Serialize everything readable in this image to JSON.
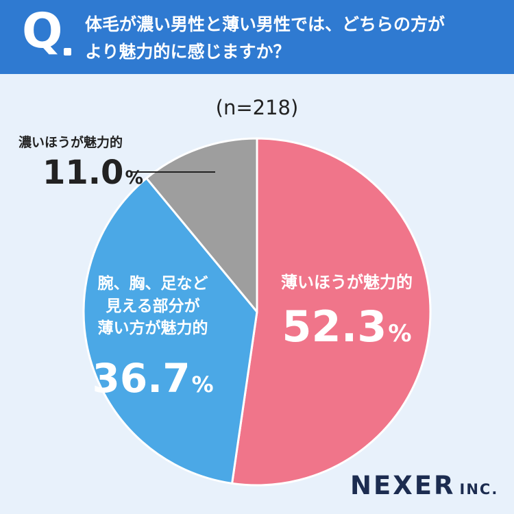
{
  "question": {
    "mark": "Q",
    "line1": "体毛が濃い男性と薄い男性では、どちらの方が",
    "line2": "より魅力的に感じますか？"
  },
  "chart_data": {
    "type": "pie",
    "title": "体毛が濃い男性と薄い男性では、どちらの方がより魅力的に感じますか？",
    "sample_size": "(n=218)",
    "slices": [
      {
        "label": "薄いほうが魅力的",
        "value": 52.3,
        "display": "52.3",
        "color": "#f0758a"
      },
      {
        "label": "腕、胸、足など\n見える部分が\n薄い方が魅力的",
        "value": 36.7,
        "display": "36.7",
        "color": "#4ba8e6"
      },
      {
        "label": "濃いほうが魅力的",
        "value": 11.0,
        "display": "11.0",
        "color": "#9e9e9e"
      }
    ],
    "unit": "%",
    "start": "12 o'clock",
    "direction": "clockwise"
  },
  "logo": {
    "main": "NEXER",
    "sub": "INC."
  },
  "colors": {
    "header": "#2f7ad1",
    "background": "#e8f1fb",
    "text_dark": "#222222",
    "logo": "#1c2c50"
  }
}
